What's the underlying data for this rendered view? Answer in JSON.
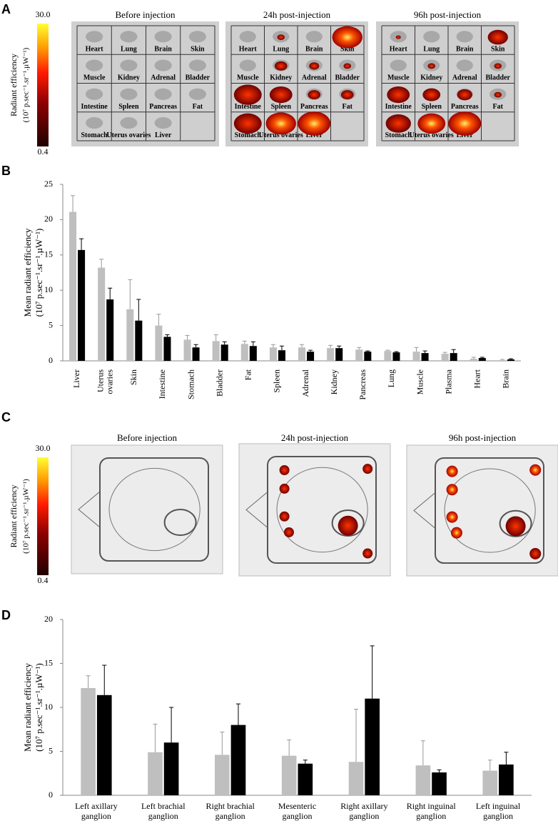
{
  "panel_labels": [
    "A",
    "B",
    "C",
    "D"
  ],
  "panel_a": {
    "colorbar": {
      "label": [
        "Radiant efficiency",
        "(10⁷ p.sec⁻¹.sr⁻¹.µW⁻¹)"
      ],
      "max": {
        "value": 30,
        "label": "30.0"
      },
      "min": 0.4
    },
    "titles": [
      "Before injection",
      "24h post-injection",
      "96h post-injection"
    ],
    "organs": [
      "Heart",
      "Lung",
      "Brain",
      "Skin",
      "Muscle",
      "Kidney",
      "Adrenal",
      "Bladder",
      "Intestine",
      "Spleen",
      "Pancreas",
      "Fat",
      "Stomach",
      "Uterus ovaries",
      "Liver"
    ]
  },
  "panel_c": {
    "colorbar": {
      "label": [
        "Radiant efficiency",
        "(10⁷ p.sec⁻¹.sr⁻¹.µW⁻¹)"
      ],
      "max": {
        "value": 30,
        "label": "30.0"
      },
      "min": 0.4
    },
    "titles": [
      "Before injection",
      "24h post-injection",
      "96h post-injection"
    ]
  },
  "chart_data": [
    {
      "type": "bar",
      "ylabel": [
        "Mean radiant efficiency",
        "(10⁷ p.sec⁻¹.sr⁻¹.µW⁻¹)"
      ],
      "categories": [
        "Liver",
        "Uterus ovaries",
        "Skin",
        "Intestine",
        "Stomach",
        "Bladder",
        "Fat",
        "Spleen",
        "Adrenal",
        "Kidney",
        "Pancreas",
        "Lung",
        "Muscle",
        "Plasma",
        "Heart",
        "Brain"
      ],
      "series": [
        {
          "color": "#bfbfbf",
          "values": [
            21.1,
            13.2,
            7.3,
            5.0,
            3.0,
            2.8,
            2.4,
            1.9,
            1.9,
            1.8,
            1.6,
            1.4,
            1.3,
            1.0,
            0.3,
            0.1
          ],
          "errors": [
            2.3,
            1.2,
            4.2,
            1.6,
            0.6,
            0.9,
            0.4,
            0.4,
            0.4,
            0.4,
            0.3,
            0.1,
            0.6,
            0.2,
            0.2,
            0.1
          ]
        },
        {
          "color": "#000000",
          "values": [
            15.7,
            8.7,
            5.7,
            3.4,
            1.9,
            2.3,
            2.1,
            1.5,
            1.3,
            1.8,
            1.3,
            1.2,
            1.1,
            1.1,
            0.4,
            0.2
          ],
          "errors": [
            1.6,
            1.6,
            3.0,
            0.3,
            0.4,
            0.4,
            0.6,
            0.6,
            0.2,
            0.3,
            0.1,
            0.1,
            0.3,
            0.5,
            0.1,
            0.1
          ]
        }
      ],
      "ylim": [
        0,
        25
      ],
      "yticks": [
        0,
        5,
        10,
        15,
        20,
        25
      ],
      "grid": false
    },
    {
      "type": "bar",
      "ylabel": [
        "Mean radiant efficiency",
        "(10⁷ p.sec⁻¹.sr⁻¹.µW⁻¹)"
      ],
      "categories": [
        "Left axillary ganglion",
        "Left brachial ganglion",
        "Right brachial ganglion",
        "Mesenteric ganglion",
        "Right axillary ganglion",
        "Right inguinal ganglion",
        "Left inguinal ganglion"
      ],
      "series": [
        {
          "color": "#bfbfbf",
          "values": [
            12.2,
            4.9,
            4.6,
            4.5,
            3.8,
            3.4,
            2.8
          ],
          "errors": [
            1.4,
            3.2,
            2.6,
            1.8,
            6.0,
            2.8,
            1.2
          ]
        },
        {
          "color": "#000000",
          "values": [
            11.4,
            6.0,
            8.0,
            3.6,
            11.0,
            2.6,
            3.5
          ],
          "errors": [
            3.4,
            4.0,
            2.4,
            0.4,
            6.0,
            0.3,
            1.4
          ]
        }
      ],
      "ylim": [
        0,
        20
      ],
      "yticks": [
        0,
        5,
        10,
        15,
        20
      ],
      "grid": false
    }
  ]
}
